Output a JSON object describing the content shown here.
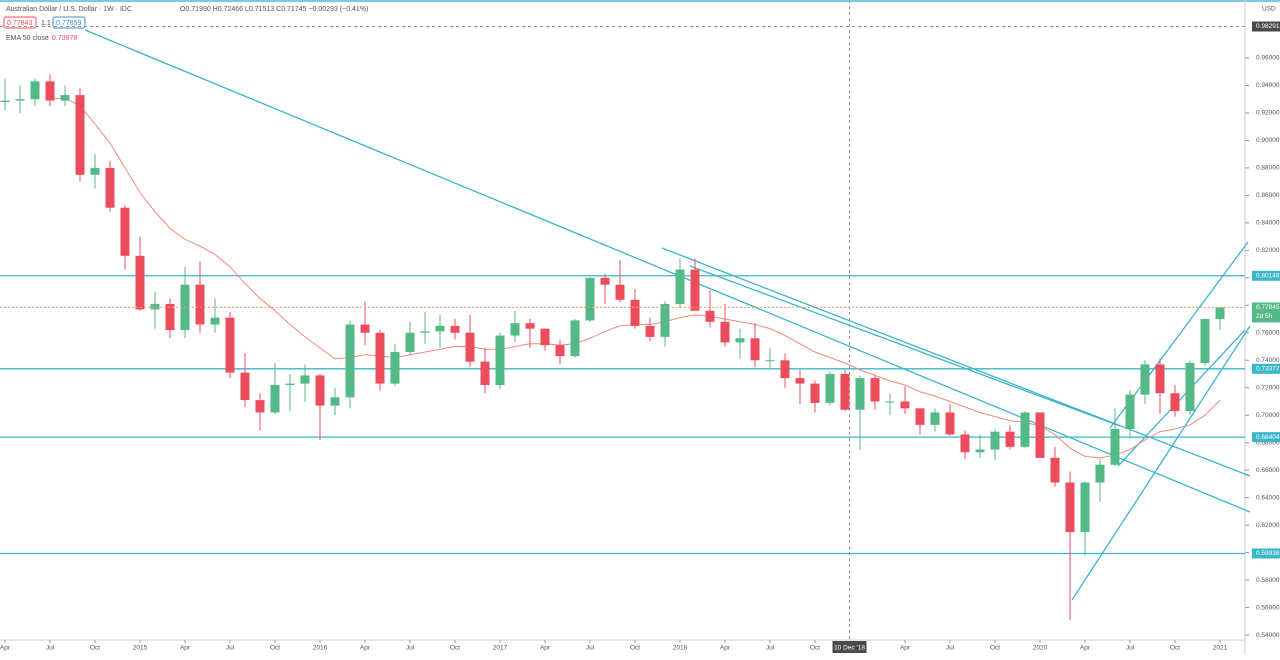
{
  "chart_data": {
    "type": "candlestick",
    "title": "Australian Dollar / U.S. Dollar · 1W · IDC",
    "ohlc_readout": "O0.71990 H0.72466 L0.71513 C0.71745 −0.00293 (−0.41%)",
    "bid": "0.77843",
    "ratio": "1:1",
    "ask": "0.77859",
    "indicator": "EMA 50 close",
    "indicator_value": "0.73978",
    "currency": "USD",
    "colors": {
      "up": "#53b987",
      "down": "#eb4d5c",
      "ema": "#f08a7e",
      "level": "#3bb6c9",
      "last": "#f0a060"
    },
    "xlim": [
      "2014-04",
      "2021-01"
    ],
    "xticks": [
      {
        "value": "2014-04",
        "label": "Apr"
      },
      {
        "value": "2014-07",
        "label": "Jul"
      },
      {
        "value": "2014-10",
        "label": "Oct"
      },
      {
        "value": "2015-01",
        "label": "2015"
      },
      {
        "value": "2015-04",
        "label": "Apr"
      },
      {
        "value": "2015-07",
        "label": "Jul"
      },
      {
        "value": "2015-10",
        "label": "Oct"
      },
      {
        "value": "2016-01",
        "label": "2016"
      },
      {
        "value": "2016-04",
        "label": "Apr"
      },
      {
        "value": "2016-07",
        "label": "Jul"
      },
      {
        "value": "2016-10",
        "label": "Oct"
      },
      {
        "value": "2017-01",
        "label": "2017"
      },
      {
        "value": "2017-04",
        "label": "Apr"
      },
      {
        "value": "2017-07",
        "label": "Jul"
      },
      {
        "value": "2017-10",
        "label": "Oct"
      },
      {
        "value": "2018-01",
        "label": "2018"
      },
      {
        "value": "2018-04",
        "label": "Apr"
      },
      {
        "value": "2018-07",
        "label": "Jul"
      },
      {
        "value": "2018-10",
        "label": "Oct"
      },
      {
        "value": "2019-04",
        "label": "Apr"
      },
      {
        "value": "2019-07",
        "label": "Jul"
      },
      {
        "value": "2019-10",
        "label": "Oct"
      },
      {
        "value": "2020-01",
        "label": "2020"
      },
      {
        "value": "2020-04",
        "label": "Apr"
      },
      {
        "value": "2020-07",
        "label": "Jul"
      },
      {
        "value": "2020-10",
        "label": "Oct"
      },
      {
        "value": "2021-01",
        "label": "2021"
      }
    ],
    "ylim": [
      0.5364,
      1.0022
    ],
    "yticks": [
      {
        "value": 0.54,
        "label": "0.54000"
      },
      {
        "value": 0.56,
        "label": "0.56000"
      },
      {
        "value": 0.58,
        "label": "0.58000"
      },
      {
        "value": 0.6,
        "label": "0.60000"
      },
      {
        "value": 0.62,
        "label": "0.62000"
      },
      {
        "value": 0.64,
        "label": "0.64000"
      },
      {
        "value": 0.66,
        "label": "0.66000"
      },
      {
        "value": 0.68,
        "label": "0.68000"
      },
      {
        "value": 0.7,
        "label": "0.70000"
      },
      {
        "value": 0.72,
        "label": "0.72000"
      },
      {
        "value": 0.74,
        "label": "0.74000"
      },
      {
        "value": 0.76,
        "label": "0.76000"
      },
      {
        "value": 0.78,
        "label": "0.78000"
      },
      {
        "value": 0.8,
        "label": "0.80000"
      },
      {
        "value": 0.82,
        "label": "0.82000"
      },
      {
        "value": 0.84,
        "label": "0.84000"
      },
      {
        "value": 0.86,
        "label": "0.86000"
      },
      {
        "value": 0.88,
        "label": "0.88000"
      },
      {
        "value": 0.9,
        "label": "0.90000"
      },
      {
        "value": 0.92,
        "label": "0.92000"
      },
      {
        "value": 0.94,
        "label": "0.94000"
      },
      {
        "value": 0.96,
        "label": "0.96000"
      }
    ],
    "levels": [
      0.80148,
      0.73377,
      0.68404,
      0.59938
    ],
    "last_price": 0.77845,
    "countdown": "2d 5h",
    "crosshair": {
      "x": {
        "value": "2018-12-10",
        "label": "10 Dec '18"
      },
      "y": 0.98291
    },
    "x": [
      "2014-04",
      "2014-05",
      "2014-06",
      "2014-07",
      "2014-08",
      "2014-09",
      "2014-10",
      "2014-11",
      "2014-12",
      "2015-01",
      "2015-02",
      "2015-03",
      "2015-04",
      "2015-05",
      "2015-06",
      "2015-07",
      "2015-08",
      "2015-09",
      "2015-10",
      "2015-11",
      "2015-12",
      "2016-01",
      "2016-02",
      "2016-03",
      "2016-04",
      "2016-05",
      "2016-06",
      "2016-07",
      "2016-08",
      "2016-09",
      "2016-10",
      "2016-11",
      "2016-12",
      "2017-01",
      "2017-02",
      "2017-03",
      "2017-04",
      "2017-05",
      "2017-06",
      "2017-07",
      "2017-08",
      "2017-09",
      "2017-10",
      "2017-11",
      "2017-12",
      "2018-01",
      "2018-02",
      "2018-03",
      "2018-04",
      "2018-05",
      "2018-06",
      "2018-07",
      "2018-08",
      "2018-09",
      "2018-10",
      "2018-11",
      "2018-12",
      "2019-01",
      "2019-02",
      "2019-03",
      "2019-04",
      "2019-05",
      "2019-06",
      "2019-07",
      "2019-08",
      "2019-09",
      "2019-10",
      "2019-11",
      "2019-12",
      "2020-01",
      "2020-02",
      "2020-03",
      "2020-04",
      "2020-05",
      "2020-06",
      "2020-07",
      "2020-08",
      "2020-09",
      "2020-10",
      "2020-11",
      "2020-12",
      "2021-01"
    ],
    "open": [
      0.928,
      0.929,
      0.93,
      0.943,
      0.929,
      0.933,
      0.875,
      0.88,
      0.851,
      0.816,
      0.777,
      0.781,
      0.762,
      0.795,
      0.766,
      0.771,
      0.731,
      0.711,
      0.702,
      0.722,
      0.723,
      0.729,
      0.707,
      0.713,
      0.766,
      0.76,
      0.723,
      0.746,
      0.76,
      0.761,
      0.765,
      0.76,
      0.739,
      0.722,
      0.758,
      0.767,
      0.763,
      0.751,
      0.743,
      0.769,
      0.8,
      0.795,
      0.784,
      0.765,
      0.757,
      0.781,
      0.806,
      0.776,
      0.768,
      0.753,
      0.756,
      0.74,
      0.74,
      0.727,
      0.723,
      0.709,
      0.73,
      0.704,
      0.727,
      0.71,
      0.71,
      0.705,
      0.693,
      0.702,
      0.686,
      0.673,
      0.675,
      0.688,
      0.677,
      0.702,
      0.669,
      0.651,
      0.615,
      0.651,
      0.664,
      0.69,
      0.715,
      0.737,
      0.716,
      0.703,
      0.738,
      0.77
    ],
    "high": [
      0.945,
      0.94,
      0.945,
      0.948,
      0.94,
      0.938,
      0.89,
      0.885,
      0.853,
      0.83,
      0.79,
      0.785,
      0.808,
      0.812,
      0.785,
      0.775,
      0.745,
      0.716,
      0.738,
      0.73,
      0.737,
      0.73,
      0.72,
      0.769,
      0.783,
      0.762,
      0.752,
      0.768,
      0.775,
      0.773,
      0.77,
      0.773,
      0.749,
      0.76,
      0.776,
      0.77,
      0.763,
      0.755,
      0.77,
      0.8,
      0.803,
      0.813,
      0.792,
      0.771,
      0.783,
      0.814,
      0.814,
      0.791,
      0.781,
      0.763,
      0.767,
      0.749,
      0.745,
      0.733,
      0.725,
      0.732,
      0.733,
      0.729,
      0.729,
      0.716,
      0.721,
      0.705,
      0.705,
      0.708,
      0.689,
      0.686,
      0.69,
      0.693,
      0.703,
      0.702,
      0.677,
      0.659,
      0.652,
      0.668,
      0.705,
      0.718,
      0.74,
      0.741,
      0.722,
      0.74,
      0.77,
      0.7785
    ],
    "low": [
      0.922,
      0.92,
      0.925,
      0.925,
      0.925,
      0.87,
      0.865,
      0.848,
      0.806,
      0.776,
      0.763,
      0.756,
      0.756,
      0.76,
      0.76,
      0.727,
      0.706,
      0.689,
      0.701,
      0.703,
      0.71,
      0.682,
      0.7,
      0.705,
      0.751,
      0.718,
      0.721,
      0.744,
      0.752,
      0.749,
      0.755,
      0.735,
      0.716,
      0.719,
      0.753,
      0.749,
      0.747,
      0.737,
      0.742,
      0.768,
      0.781,
      0.782,
      0.763,
      0.754,
      0.75,
      0.778,
      0.78,
      0.764,
      0.75,
      0.741,
      0.735,
      0.734,
      0.72,
      0.708,
      0.702,
      0.707,
      0.703,
      0.675,
      0.704,
      0.7,
      0.701,
      0.686,
      0.688,
      0.685,
      0.668,
      0.669,
      0.667,
      0.675,
      0.676,
      0.669,
      0.648,
      0.551,
      0.598,
      0.637,
      0.663,
      0.683,
      0.708,
      0.701,
      0.699,
      0.7,
      0.736,
      0.762
    ],
    "close": [
      0.929,
      0.93,
      0.943,
      0.929,
      0.933,
      0.875,
      0.88,
      0.851,
      0.816,
      0.777,
      0.781,
      0.762,
      0.795,
      0.766,
      0.771,
      0.731,
      0.711,
      0.702,
      0.722,
      0.723,
      0.729,
      0.707,
      0.713,
      0.766,
      0.76,
      0.723,
      0.746,
      0.76,
      0.761,
      0.765,
      0.76,
      0.739,
      0.722,
      0.758,
      0.767,
      0.763,
      0.751,
      0.743,
      0.769,
      0.8,
      0.795,
      0.784,
      0.765,
      0.757,
      0.781,
      0.806,
      0.776,
      0.768,
      0.753,
      0.756,
      0.74,
      0.74,
      0.727,
      0.723,
      0.709,
      0.73,
      0.704,
      0.727,
      0.71,
      0.71,
      0.705,
      0.693,
      0.702,
      0.686,
      0.673,
      0.675,
      0.688,
      0.677,
      0.702,
      0.669,
      0.651,
      0.615,
      0.651,
      0.664,
      0.69,
      0.715,
      0.737,
      0.716,
      0.703,
      0.738,
      0.77,
      0.7785
    ],
    "ema": [
      null,
      null,
      null,
      0.93,
      0.931,
      0.925,
      0.912,
      0.898,
      0.88,
      0.862,
      0.848,
      0.836,
      0.828,
      0.823,
      0.817,
      0.808,
      0.796,
      0.785,
      0.776,
      0.766,
      0.757,
      0.749,
      0.741,
      0.742,
      0.744,
      0.743,
      0.742,
      0.744,
      0.746,
      0.748,
      0.75,
      0.75,
      0.748,
      0.748,
      0.75,
      0.752,
      0.752,
      0.751,
      0.752,
      0.756,
      0.761,
      0.765,
      0.766,
      0.766,
      0.768,
      0.771,
      0.773,
      0.772,
      0.77,
      0.768,
      0.766,
      0.763,
      0.758,
      0.752,
      0.746,
      0.742,
      0.738,
      0.733,
      0.729,
      0.725,
      0.722,
      0.717,
      0.714,
      0.71,
      0.706,
      0.702,
      0.699,
      0.696,
      0.695,
      0.692,
      0.686,
      0.676,
      0.67,
      0.669,
      0.671,
      0.675,
      0.682,
      0.688,
      0.69,
      0.693,
      0.7,
      0.711
    ]
  }
}
